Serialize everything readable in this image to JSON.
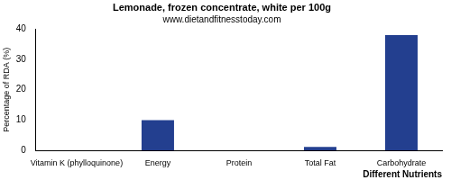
{
  "chart_data": {
    "type": "bar",
    "title": "Lemonade, frozen concentrate, white per 100g",
    "subtitle": "www.dietandfitnesstoday.com",
    "x_label": "Different Nutrients",
    "y_label": "Percentage of RDA (%)",
    "categories": [
      "Vitamin K (phylloquinone)",
      "Energy",
      "Protein",
      "Total Fat",
      "Carbohydrate"
    ],
    "values": [
      0,
      10,
      0,
      1.2,
      38
    ],
    "color": "#233f8f",
    "ylim": [
      0,
      40
    ],
    "yticks": [
      0,
      10,
      20,
      30,
      40
    ],
    "grid": false
  }
}
